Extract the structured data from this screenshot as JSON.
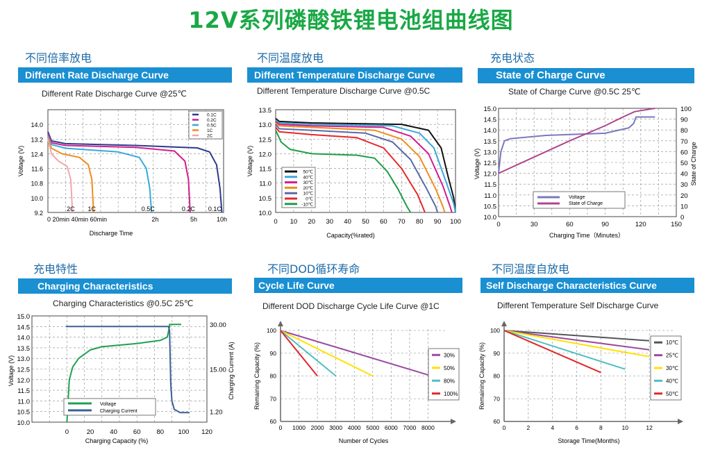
{
  "page_title": "12V系列磷酸铁锂电池组曲线图",
  "colors": {
    "title_green": "#1aa845",
    "bar_blue": "#1a8fd2",
    "cn_blue": "#1e6ba8"
  },
  "chart_data": [
    {
      "id": "rate",
      "type": "line",
      "section_label": "不同倍率放电",
      "title": "Different Rate Discharge Curve",
      "subtitle": "Different Rate Discharge Curve @25℃",
      "xlabel": "Discharge Time",
      "ylabel": "Voltage (V)",
      "ylim": [
        9.2,
        14.8
      ],
      "yticks": [
        "9.2",
        "10.0",
        "10.8",
        "11.6",
        "12.4",
        "13.2",
        "14.0"
      ],
      "xtick_text": "0  20min 40min 60min",
      "xticks_right": [
        {
          "label": "2h",
          "x": 0.61
        },
        {
          "label": "5h",
          "x": 0.83
        },
        {
          "label": "10h",
          "x": 0.99
        }
      ],
      "legend": [
        "0.1C",
        "0.2C",
        "0.5C",
        "1C",
        "2C"
      ],
      "end_labels": [
        {
          "label": "2C",
          "x": 0.13
        },
        {
          "label": "1C",
          "x": 0.25
        },
        {
          "label": "0.5C",
          "x": 0.57
        },
        {
          "label": "0.2C",
          "x": 0.8
        },
        {
          "label": "0.1C",
          "x": 0.95
        }
      ],
      "series": [
        {
          "name": "0.1C",
          "color": "#2b3a8c",
          "points": [
            [
              0,
              13.6
            ],
            [
              0.02,
              13.1
            ],
            [
              0.1,
              12.95
            ],
            [
              0.5,
              12.85
            ],
            [
              0.85,
              12.72
            ],
            [
              0.92,
              12.5
            ],
            [
              0.96,
              11.8
            ],
            [
              0.98,
              10.5
            ],
            [
              0.99,
              9.2
            ]
          ]
        },
        {
          "name": "0.2C",
          "color": "#d11d8f",
          "points": [
            [
              0,
              13.5
            ],
            [
              0.02,
              13.0
            ],
            [
              0.1,
              12.85
            ],
            [
              0.5,
              12.75
            ],
            [
              0.72,
              12.55
            ],
            [
              0.78,
              12.0
            ],
            [
              0.8,
              11.0
            ],
            [
              0.81,
              9.2
            ]
          ]
        },
        {
          "name": "0.5C",
          "color": "#34a9df",
          "points": [
            [
              0,
              13.4
            ],
            [
              0.02,
              12.9
            ],
            [
              0.1,
              12.7
            ],
            [
              0.4,
              12.5
            ],
            [
              0.52,
              12.2
            ],
            [
              0.56,
              11.6
            ],
            [
              0.58,
              10.5
            ],
            [
              0.59,
              9.2
            ]
          ]
        },
        {
          "name": "1C",
          "color": "#f08c1d",
          "points": [
            [
              0,
              13.3
            ],
            [
              0.02,
              12.7
            ],
            [
              0.08,
              12.4
            ],
            [
              0.18,
              12.2
            ],
            [
              0.23,
              11.8
            ],
            [
              0.25,
              11.0
            ],
            [
              0.26,
              9.2
            ]
          ]
        },
        {
          "name": "2C",
          "color": "#f4a7a8",
          "points": [
            [
              0,
              13.2
            ],
            [
              0.02,
              12.4
            ],
            [
              0.06,
              12.0
            ],
            [
              0.11,
              11.7
            ],
            [
              0.13,
              11.0
            ],
            [
              0.14,
              9.2
            ]
          ]
        }
      ]
    },
    {
      "id": "temp",
      "type": "line",
      "section_label": "不同温度放电",
      "title": "Different Temperature Discharge Curve",
      "subtitle": "Different Temperature Discharge Curve @0.5C",
      "xlabel": "Capacity(%rated)",
      "ylabel": "Voltage (V)",
      "xlim": [
        0,
        100
      ],
      "ylim": [
        10.0,
        13.5
      ],
      "xticks": [
        0,
        10,
        20,
        30,
        40,
        50,
        60,
        70,
        80,
        90,
        100
      ],
      "yticks": [
        10.0,
        10.5,
        11.0,
        11.5,
        12.0,
        12.5,
        13.0,
        13.5
      ],
      "legend": [
        "50℃",
        "40℃",
        "30℃",
        "20℃",
        "10℃",
        "0℃",
        "-10℃"
      ],
      "series": [
        {
          "name": "50℃",
          "color": "#111111",
          "points": [
            [
              0,
              13.2
            ],
            [
              2,
              13.1
            ],
            [
              20,
              13.05
            ],
            [
              70,
              13.0
            ],
            [
              85,
              12.8
            ],
            [
              92,
              12.2
            ],
            [
              96,
              11.2
            ],
            [
              99,
              10.5
            ],
            [
              100,
              10.0
            ]
          ]
        },
        {
          "name": "40℃",
          "color": "#3aa8dc",
          "points": [
            [
              0,
              13.15
            ],
            [
              2,
              13.05
            ],
            [
              20,
              13.0
            ],
            [
              65,
              12.95
            ],
            [
              80,
              12.7
            ],
            [
              88,
              12.2
            ],
            [
              95,
              11.0
            ],
            [
              99,
              10.3
            ],
            [
              100,
              10.0
            ]
          ]
        },
        {
          "name": "30℃",
          "color": "#d11d8f",
          "points": [
            [
              0,
              13.1
            ],
            [
              2,
              13.0
            ],
            [
              20,
              12.95
            ],
            [
              60,
              12.9
            ],
            [
              75,
              12.6
            ],
            [
              85,
              12.0
            ],
            [
              93,
              10.9
            ],
            [
              97,
              10.2
            ],
            [
              98,
              10.0
            ]
          ]
        },
        {
          "name": "20℃",
          "color": "#f08c1d",
          "points": [
            [
              0,
              13.05
            ],
            [
              2,
              12.95
            ],
            [
              20,
              12.9
            ],
            [
              55,
              12.8
            ],
            [
              70,
              12.5
            ],
            [
              80,
              11.9
            ],
            [
              89,
              10.8
            ],
            [
              93,
              10.2
            ],
            [
              94,
              10.0
            ]
          ]
        },
        {
          "name": "10℃",
          "color": "#5a6aa8",
          "points": [
            [
              0,
              13.0
            ],
            [
              2,
              12.85
            ],
            [
              20,
              12.8
            ],
            [
              50,
              12.7
            ],
            [
              65,
              12.4
            ],
            [
              75,
              11.8
            ],
            [
              84,
              10.8
            ],
            [
              89,
              10.2
            ],
            [
              90,
              10.0
            ]
          ]
        },
        {
          "name": "0℃",
          "color": "#e8262b",
          "points": [
            [
              0,
              12.9
            ],
            [
              2,
              12.75
            ],
            [
              20,
              12.65
            ],
            [
              45,
              12.55
            ],
            [
              60,
              12.2
            ],
            [
              70,
              11.5
            ],
            [
              79,
              10.6
            ],
            [
              83,
              10.0
            ]
          ]
        },
        {
          "name": "-10℃",
          "color": "#1e9d48",
          "points": [
            [
              0,
              12.8
            ],
            [
              3,
              12.4
            ],
            [
              8,
              12.15
            ],
            [
              20,
              12.0
            ],
            [
              45,
              11.95
            ],
            [
              55,
              11.85
            ],
            [
              62,
              11.4
            ],
            [
              68,
              10.8
            ],
            [
              73,
              10.2
            ],
            [
              75,
              10.0
            ]
          ]
        }
      ]
    },
    {
      "id": "soc",
      "type": "line",
      "section_label": "充电状态",
      "title": "State of Charge Curve",
      "subtitle": "State of Charge Curve @0.5C 25℃",
      "xlabel": "Charging Time（Minutes）",
      "ylabel": "Voltage (V)",
      "ylabel_right": "State of Charge",
      "xlim": [
        0,
        150
      ],
      "ylim": [
        10.0,
        15.0
      ],
      "ylim_right": [
        0,
        100
      ],
      "xticks": [
        0,
        30,
        60,
        90,
        120,
        150
      ],
      "yticks": [
        10.0,
        10.5,
        11.0,
        11.5,
        12.0,
        12.5,
        13.0,
        13.5,
        14.0,
        14.5,
        15.0
      ],
      "yticks_right": [
        0,
        10,
        20,
        30,
        40,
        50,
        60,
        70,
        80,
        90,
        100
      ],
      "legend": [
        "Voltage",
        "State of Charge"
      ],
      "series": [
        {
          "name": "Voltage",
          "axis": "left",
          "color": "#7b78c0",
          "points": [
            [
              0,
              12.0
            ],
            [
              2,
              13.0
            ],
            [
              5,
              13.5
            ],
            [
              10,
              13.6
            ],
            [
              40,
              13.75
            ],
            [
              90,
              13.85
            ],
            [
              110,
              14.1
            ],
            [
              114,
              14.3
            ],
            [
              116,
              14.6
            ],
            [
              132,
              14.6
            ]
          ]
        },
        {
          "name": "State of Charge",
          "axis": "right",
          "color": "#b0458f",
          "points": [
            [
              0,
              40
            ],
            [
              30,
              55
            ],
            [
              60,
              70
            ],
            [
              90,
              84
            ],
            [
              105,
              92
            ],
            [
              115,
              97
            ],
            [
              132,
              100
            ]
          ]
        }
      ]
    },
    {
      "id": "charge",
      "type": "line",
      "section_label": "充电特性",
      "title": "Charging Characteristics",
      "subtitle": "Charging Characteristics @0.5C 25℃",
      "xlabel": "Charging Capacity (%)",
      "ylabel": "Voltage (V)",
      "ylabel_right": "Charging Current (A)",
      "xlim": [
        -30,
        120
      ],
      "ylim": [
        10.0,
        15.0
      ],
      "xticks": [
        0,
        20,
        40,
        60,
        80,
        100,
        120
      ],
      "yticks": [
        10.0,
        10.5,
        11.0,
        11.5,
        12.0,
        12.5,
        13.0,
        13.5,
        14.0,
        14.5,
        15.0
      ],
      "right_labels": [
        {
          "label": "30.00",
          "y": 14.6
        },
        {
          "label": "15.00",
          "y": 12.5
        },
        {
          "label": "1.20",
          "y": 10.5
        }
      ],
      "legend": [
        "Voltage",
        "Charging Current"
      ],
      "series": [
        {
          "name": "Voltage",
          "color": "#20a050",
          "points": [
            [
              0,
              10.0
            ],
            [
              2,
              12.0
            ],
            [
              5,
              12.6
            ],
            [
              10,
              13.0
            ],
            [
              20,
              13.4
            ],
            [
              30,
              13.55
            ],
            [
              60,
              13.7
            ],
            [
              80,
              13.85
            ],
            [
              86,
              14.0
            ],
            [
              88,
              14.5
            ],
            [
              88,
              14.6
            ],
            [
              98,
              14.6
            ]
          ]
        },
        {
          "name": "Charging Current",
          "color": "#3a5f95",
          "points": [
            [
              -1,
              14.5
            ],
            [
              87,
              14.5
            ],
            [
              88,
              14.3
            ],
            [
              88.5,
              13.0
            ],
            [
              89,
              11.8
            ],
            [
              90,
              11.0
            ],
            [
              92,
              10.6
            ],
            [
              97,
              10.45
            ],
            [
              105,
              10.45
            ]
          ]
        }
      ]
    },
    {
      "id": "cycle",
      "type": "line",
      "section_label": "不同DOD循环寿命",
      "title": "Cycle Life Curve",
      "subtitle": "Different DOD Discharge Cycle Life Curve @1C",
      "xlabel": "Number of Cycles",
      "ylabel": "Remaining Capacity (%)",
      "xlim": [
        0,
        9000
      ],
      "ylim": [
        60,
        100
      ],
      "xticks": [
        0,
        1000,
        2000,
        3000,
        4000,
        5000,
        6000,
        7000,
        8000
      ],
      "yticks": [
        60,
        70,
        80,
        90,
        100
      ],
      "legend": [
        "30%",
        "50%",
        "80%",
        "100%"
      ],
      "series": [
        {
          "name": "30%",
          "color": "#9b4aa0",
          "points": [
            [
              0,
              100
            ],
            [
              8000,
              80.5
            ]
          ]
        },
        {
          "name": "50%",
          "color": "#ffe200",
          "points": [
            [
              0,
              100
            ],
            [
              5000,
              80
            ]
          ]
        },
        {
          "name": "80%",
          "color": "#4fbfbf",
          "points": [
            [
              0,
              100
            ],
            [
              3000,
              80
            ]
          ]
        },
        {
          "name": "100%",
          "color": "#e0262b",
          "points": [
            [
              0,
              100
            ],
            [
              2000,
              80
            ]
          ]
        }
      ]
    },
    {
      "id": "self",
      "type": "line",
      "section_label": "不同温度自放电",
      "title": "Self Discharge Characteristics Curve",
      "subtitle": "Different Temperature Self Discharge Curve",
      "xlabel": "Storage Time(Months)",
      "ylabel": "Remaining Capacity (%)",
      "xlim": [
        0,
        14
      ],
      "ylim": [
        60,
        100
      ],
      "xticks": [
        0,
        2,
        4,
        6,
        8,
        10,
        12
      ],
      "yticks": [
        60,
        70,
        80,
        90,
        100
      ],
      "legend": [
        "10℃",
        "25℃",
        "30℃",
        "40℃",
        "50℃"
      ],
      "series": [
        {
          "name": "10℃",
          "color": "#555555",
          "points": [
            [
              0,
              100
            ],
            [
              12,
              95.5
            ]
          ]
        },
        {
          "name": "25℃",
          "color": "#9b4aa0",
          "points": [
            [
              0,
              100
            ],
            [
              12,
              91.5
            ]
          ]
        },
        {
          "name": "30℃",
          "color": "#ffe200",
          "points": [
            [
              0,
              100
            ],
            [
              12,
              88.5
            ]
          ]
        },
        {
          "name": "40℃",
          "color": "#4fbfbf",
          "points": [
            [
              0,
              100
            ],
            [
              10,
              83
            ]
          ]
        },
        {
          "name": "50℃",
          "color": "#e0262b",
          "points": [
            [
              0,
              100
            ],
            [
              8,
              81.5
            ]
          ]
        }
      ]
    }
  ]
}
